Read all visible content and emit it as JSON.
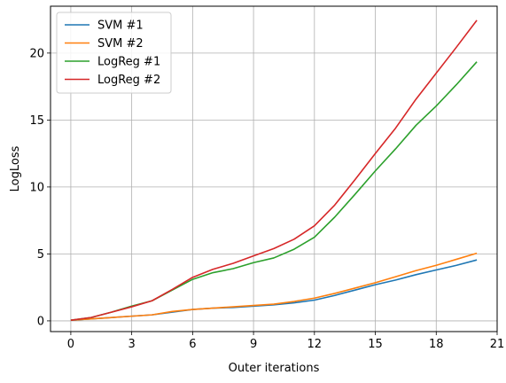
{
  "chart_data": {
    "type": "line",
    "title": "",
    "xlabel": "Outer iterations",
    "ylabel": "LogLoss",
    "xlim": [
      -1,
      21
    ],
    "ylim": [
      -0.8,
      23.5
    ],
    "xticks": [
      0,
      3,
      6,
      9,
      12,
      15,
      18,
      21
    ],
    "yticks": [
      0,
      5,
      10,
      15,
      20
    ],
    "grid": true,
    "legend_position": "top-left",
    "x": [
      0,
      1,
      2,
      3,
      4,
      5,
      6,
      7,
      8,
      9,
      10,
      11,
      12,
      13,
      14,
      15,
      16,
      17,
      18,
      19,
      20
    ],
    "series": [
      {
        "name": "SVM #1",
        "color": "#1f77b4",
        "values": [
          0.05,
          0.15,
          0.25,
          0.35,
          0.45,
          0.65,
          0.85,
          0.95,
          1.0,
          1.1,
          1.2,
          1.35,
          1.55,
          1.9,
          2.3,
          2.7,
          3.05,
          3.45,
          3.8,
          4.15,
          4.55
        ]
      },
      {
        "name": "SVM #2",
        "color": "#ff7f0e",
        "values": [
          0.05,
          0.15,
          0.25,
          0.35,
          0.45,
          0.7,
          0.85,
          0.95,
          1.05,
          1.15,
          1.25,
          1.45,
          1.7,
          2.05,
          2.45,
          2.85,
          3.3,
          3.75,
          4.15,
          4.6,
          5.05
        ]
      },
      {
        "name": "LogReg #1",
        "color": "#2ca02c",
        "values": [
          0.05,
          0.25,
          0.65,
          1.1,
          1.5,
          2.3,
          3.1,
          3.6,
          3.9,
          4.35,
          4.7,
          5.35,
          6.25,
          7.75,
          9.45,
          11.2,
          12.85,
          14.6,
          16.05,
          17.65,
          19.35
        ]
      },
      {
        "name": "LogReg #2",
        "color": "#d62728",
        "values": [
          0.05,
          0.25,
          0.65,
          1.05,
          1.5,
          2.35,
          3.25,
          3.85,
          4.3,
          4.85,
          5.4,
          6.1,
          7.1,
          8.65,
          10.55,
          12.5,
          14.4,
          16.55,
          18.5,
          20.45,
          22.45
        ]
      }
    ]
  }
}
